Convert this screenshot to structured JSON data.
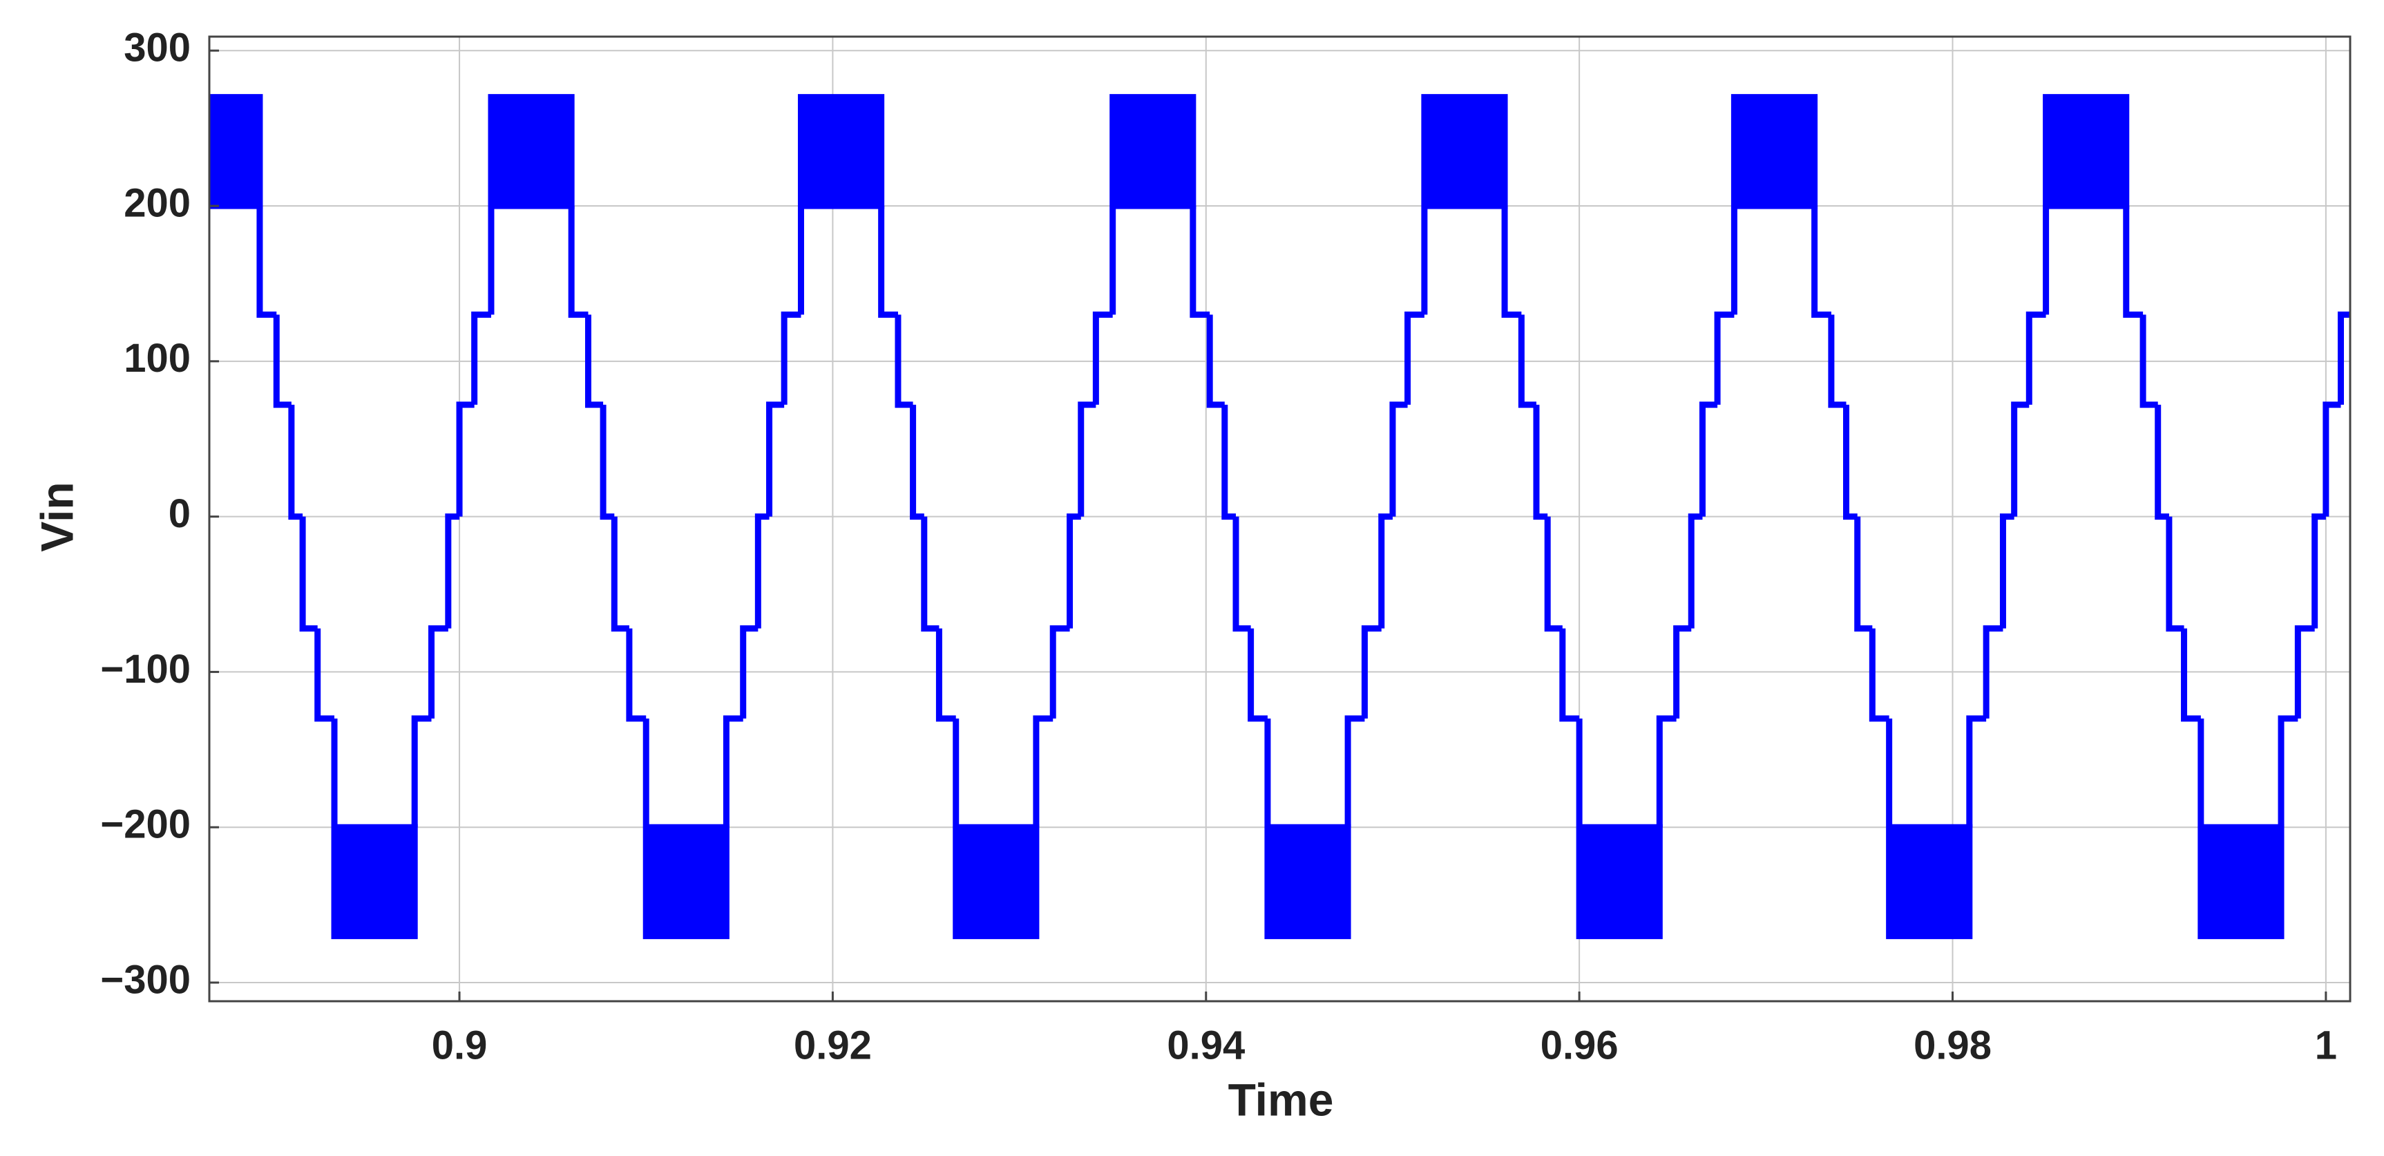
{
  "chart_data": {
    "type": "band-step",
    "x_label": "Time",
    "y_label": "Vin",
    "xlim": [
      0.8866,
      1.0013
    ],
    "ylim": [
      -312,
      309
    ],
    "xticks": [
      0.9,
      0.92,
      0.94,
      0.96,
      0.98,
      1
    ],
    "yticks": [
      {
        "value": -300,
        "label": "−300"
      },
      {
        "value": -200,
        "label": "−200"
      },
      {
        "value": -100,
        "label": "−100"
      },
      0,
      100,
      200,
      300
    ],
    "grid": true,
    "series": [
      {
        "color": "#0000ff",
        "x": [
          0.8866,
          0.8893,
          0.8902,
          0.891,
          0.8916,
          0.8924,
          0.8933,
          0.8976,
          0.8985,
          0.8994,
          0.9,
          0.9008,
          0.9017,
          0.906,
          0.9069,
          0.9077,
          0.9083,
          0.9091,
          0.91,
          0.9143,
          0.9152,
          0.916,
          0.9166,
          0.9174,
          0.9183,
          0.9226,
          0.9235,
          0.9243,
          0.9249,
          0.9257,
          0.9266,
          0.9309,
          0.9318,
          0.9327,
          0.9333,
          0.9341,
          0.935,
          0.9393,
          0.9402,
          0.941,
          0.9416,
          0.9424,
          0.9433,
          0.9476,
          0.9485,
          0.9494,
          0.95,
          0.9508,
          0.9517,
          0.956,
          0.9569,
          0.9577,
          0.9583,
          0.9591,
          0.96,
          0.9643,
          0.9652,
          0.966,
          0.9666,
          0.9674,
          0.9683,
          0.9726,
          0.9735,
          0.9743,
          0.9749,
          0.9757,
          0.9766,
          0.9809,
          0.9818,
          0.9827,
          0.9833,
          0.9841,
          0.985,
          0.9893,
          0.9902,
          0.991,
          0.9916,
          0.9924,
          0.9933,
          0.9976,
          0.9985,
          0.9994,
          1.0,
          1.0008
        ],
        "values": [
          200,
          130,
          72,
          0,
          -72,
          -130,
          -200,
          -130,
          -72,
          0,
          72,
          130,
          200,
          130,
          72,
          0,
          -72,
          -130,
          -200,
          -130,
          -72,
          0,
          72,
          130,
          200,
          130,
          72,
          0,
          -72,
          -130,
          -200,
          -130,
          -72,
          0,
          72,
          130,
          200,
          130,
          72,
          0,
          -72,
          -130,
          -200,
          -130,
          -72,
          0,
          72,
          130,
          200,
          130,
          72,
          0,
          -72,
          -130,
          -200,
          -130,
          -72,
          0,
          72,
          130,
          200,
          130,
          72,
          0,
          -72,
          -130,
          -200,
          -130,
          -72,
          0,
          72,
          130,
          200,
          130,
          72,
          0,
          -72,
          -130,
          -200,
          -130,
          -72,
          0,
          72,
          130
        ],
        "upper": [
          270,
          null,
          null,
          null,
          null,
          null,
          -270,
          null,
          null,
          null,
          null,
          null,
          270,
          null,
          null,
          null,
          null,
          null,
          -270,
          null,
          null,
          null,
          null,
          null,
          270,
          null,
          null,
          null,
          null,
          null,
          -270,
          null,
          null,
          null,
          null,
          null,
          270,
          null,
          null,
          null,
          null,
          null,
          -270,
          null,
          null,
          null,
          null,
          null,
          270,
          null,
          null,
          null,
          null,
          null,
          -270,
          null,
          null,
          null,
          null,
          null,
          270,
          null,
          null,
          null,
          null,
          null,
          -270,
          null,
          null,
          null,
          null,
          null,
          270,
          null,
          null,
          null,
          null,
          null,
          -270,
          null,
          null,
          null,
          null,
          null
        ]
      }
    ]
  }
}
